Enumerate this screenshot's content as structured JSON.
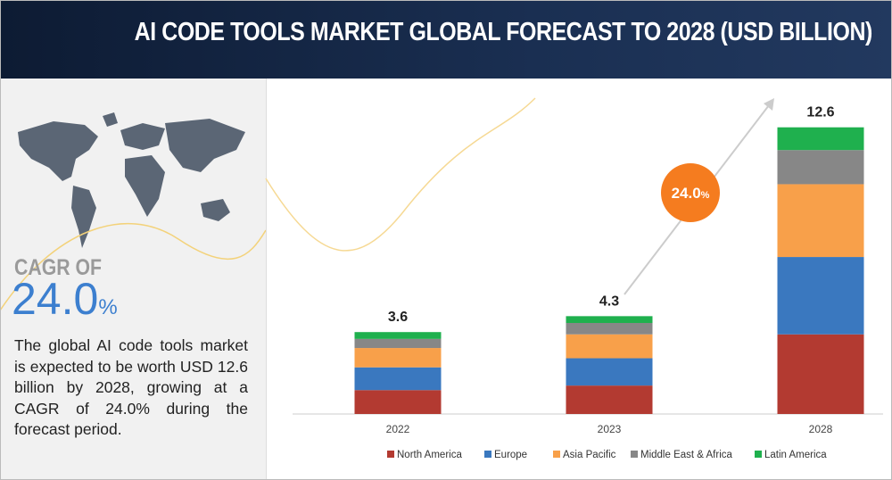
{
  "header": {
    "title": "AI CODE TOOLS MARKET GLOBAL FORECAST TO 2028 (USD BILLION)"
  },
  "left_panel": {
    "cagr_label": "CAGR OF",
    "cagr_value": "24.0",
    "cagr_unit": "%",
    "description": "The global AI code tools market is expected to be worth USD 12.6 billion by 2028, growing at a CAGR of 24.0% during the forecast period."
  },
  "badge": {
    "value": "24.0",
    "unit": "%",
    "color": "#f57c1f"
  },
  "chart_data": {
    "type": "bar",
    "stacked": true,
    "categories": [
      "2022",
      "2023",
      "2028"
    ],
    "totals": [
      "3.6",
      "4.3",
      "12.6"
    ],
    "series": [
      {
        "name": "North America",
        "color": "#b33a31",
        "values": [
          1.05,
          1.25,
          3.5
        ]
      },
      {
        "name": "Europe",
        "color": "#3a78bf",
        "values": [
          1.0,
          1.2,
          3.4
        ]
      },
      {
        "name": "Asia Pacific",
        "color": "#f8a04a",
        "values": [
          0.85,
          1.05,
          3.2
        ]
      },
      {
        "name": "Middle East & Africa",
        "color": "#878787",
        "values": [
          0.4,
          0.5,
          1.5
        ]
      },
      {
        "name": "Latin America",
        "color": "#1fb04e",
        "values": [
          0.3,
          0.3,
          1.0
        ]
      }
    ],
    "legend_position": "bottom",
    "grid": false
  }
}
